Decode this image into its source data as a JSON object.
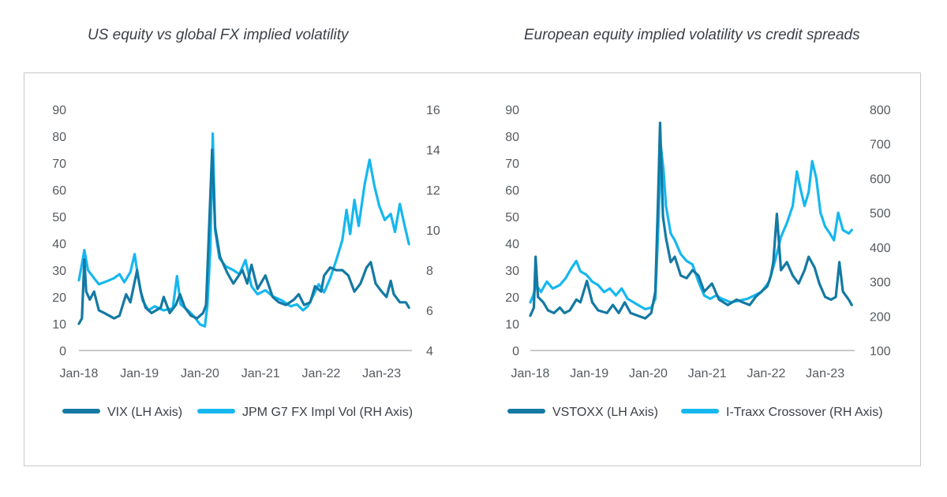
{
  "colors": {
    "dark": "#1479a3",
    "light": "#16b7ef",
    "axis": "#b5b5b5",
    "text": "#555a60"
  },
  "chart_data": [
    {
      "type": "line",
      "title": "US equity vs global FX implied volatility",
      "x_ticks": [
        "Jan-18",
        "Jan-19",
        "Jan-20",
        "Jan-21",
        "Jan-22",
        "Jan-23"
      ],
      "y_left_ticks": [
        "0",
        "10",
        "20",
        "30",
        "40",
        "50",
        "60",
        "70",
        "80",
        "90"
      ],
      "y_right_ticks": [
        "4",
        "6",
        "8",
        "10",
        "12",
        "14",
        "16"
      ],
      "ylim_left": [
        0,
        90
      ],
      "ylim_right": [
        4,
        16
      ],
      "x_range": [
        2018.0,
        2023.5
      ],
      "legend_position": "bottom",
      "series": [
        {
          "name": "VIX (LH Axis)",
          "axis": "left",
          "color": "#1479a3",
          "points": [
            [
              2018.0,
              10
            ],
            [
              2018.05,
              12
            ],
            [
              2018.09,
              34
            ],
            [
              2018.12,
              22
            ],
            [
              2018.18,
              19
            ],
            [
              2018.25,
              22
            ],
            [
              2018.33,
              15
            ],
            [
              2018.42,
              14
            ],
            [
              2018.5,
              13
            ],
            [
              2018.58,
              12
            ],
            [
              2018.67,
              13
            ],
            [
              2018.78,
              21
            ],
            [
              2018.85,
              18
            ],
            [
              2018.96,
              30
            ],
            [
              2019.02,
              22
            ],
            [
              2019.1,
              16
            ],
            [
              2019.2,
              14
            ],
            [
              2019.35,
              16
            ],
            [
              2019.4,
              20
            ],
            [
              2019.5,
              14
            ],
            [
              2019.6,
              17
            ],
            [
              2019.67,
              21
            ],
            [
              2019.75,
              16
            ],
            [
              2019.85,
              13
            ],
            [
              2019.95,
              12
            ],
            [
              2020.05,
              14
            ],
            [
              2020.1,
              17
            ],
            [
              2020.14,
              40
            ],
            [
              2020.2,
              75
            ],
            [
              2020.25,
              46
            ],
            [
              2020.33,
              35
            ],
            [
              2020.45,
              29
            ],
            [
              2020.55,
              25
            ],
            [
              2020.7,
              30
            ],
            [
              2020.78,
              25
            ],
            [
              2020.85,
              32
            ],
            [
              2020.95,
              23
            ],
            [
              2021.08,
              28
            ],
            [
              2021.2,
              20
            ],
            [
              2021.3,
              18
            ],
            [
              2021.42,
              17
            ],
            [
              2021.55,
              19
            ],
            [
              2021.63,
              21
            ],
            [
              2021.72,
              17
            ],
            [
              2021.82,
              18
            ],
            [
              2021.9,
              24
            ],
            [
              2022.0,
              22
            ],
            [
              2022.05,
              28
            ],
            [
              2022.15,
              31
            ],
            [
              2022.25,
              30
            ],
            [
              2022.35,
              30
            ],
            [
              2022.45,
              28
            ],
            [
              2022.55,
              22
            ],
            [
              2022.65,
              25
            ],
            [
              2022.75,
              31
            ],
            [
              2022.82,
              33
            ],
            [
              2022.9,
              25
            ],
            [
              2023.0,
              22
            ],
            [
              2023.08,
              20
            ],
            [
              2023.15,
              26
            ],
            [
              2023.2,
              21
            ],
            [
              2023.3,
              18
            ],
            [
              2023.4,
              18
            ],
            [
              2023.45,
              16
            ]
          ]
        },
        {
          "name": "JPM G7 FX Impl Vol (RH Axis)",
          "axis": "right",
          "color": "#16b7ef",
          "points": [
            [
              2018.0,
              7.5
            ],
            [
              2018.05,
              8.3
            ],
            [
              2018.09,
              9.0
            ],
            [
              2018.15,
              8.0
            ],
            [
              2018.25,
              7.6
            ],
            [
              2018.33,
              7.3
            ],
            [
              2018.42,
              7.4
            ],
            [
              2018.5,
              7.5
            ],
            [
              2018.58,
              7.6
            ],
            [
              2018.67,
              7.8
            ],
            [
              2018.75,
              7.4
            ],
            [
              2018.85,
              7.9
            ],
            [
              2018.92,
              8.8
            ],
            [
              2018.98,
              7.6
            ],
            [
              2019.05,
              6.5
            ],
            [
              2019.15,
              6.0
            ],
            [
              2019.25,
              6.2
            ],
            [
              2019.4,
              6.0
            ],
            [
              2019.55,
              6.1
            ],
            [
              2019.62,
              7.7
            ],
            [
              2019.68,
              6.3
            ],
            [
              2019.8,
              6.0
            ],
            [
              2019.9,
              5.7
            ],
            [
              2020.0,
              5.3
            ],
            [
              2020.08,
              5.2
            ],
            [
              2020.12,
              6.2
            ],
            [
              2020.17,
              9.0
            ],
            [
              2020.21,
              14.8
            ],
            [
              2020.25,
              10.0
            ],
            [
              2020.32,
              8.6
            ],
            [
              2020.42,
              8.2
            ],
            [
              2020.55,
              8.0
            ],
            [
              2020.65,
              7.8
            ],
            [
              2020.75,
              8.5
            ],
            [
              2020.85,
              7.2
            ],
            [
              2020.95,
              6.8
            ],
            [
              2021.08,
              7.0
            ],
            [
              2021.2,
              6.7
            ],
            [
              2021.35,
              6.5
            ],
            [
              2021.5,
              6.2
            ],
            [
              2021.6,
              6.3
            ],
            [
              2021.7,
              6.0
            ],
            [
              2021.78,
              6.2
            ],
            [
              2021.88,
              6.8
            ],
            [
              2021.96,
              7.3
            ],
            [
              2022.05,
              6.9
            ],
            [
              2022.15,
              7.6
            ],
            [
              2022.25,
              8.5
            ],
            [
              2022.35,
              9.5
            ],
            [
              2022.42,
              11.0
            ],
            [
              2022.48,
              9.8
            ],
            [
              2022.55,
              11.5
            ],
            [
              2022.62,
              10.2
            ],
            [
              2022.72,
              12.3
            ],
            [
              2022.8,
              13.5
            ],
            [
              2022.88,
              12.2
            ],
            [
              2022.96,
              11.2
            ],
            [
              2023.05,
              10.5
            ],
            [
              2023.15,
              10.8
            ],
            [
              2023.22,
              9.9
            ],
            [
              2023.3,
              11.3
            ],
            [
              2023.38,
              10.2
            ],
            [
              2023.45,
              9.3
            ]
          ]
        }
      ]
    },
    {
      "type": "line",
      "title": "European equity implied volatility vs credit spreads",
      "x_ticks": [
        "Jan-18",
        "Jan-19",
        "Jan-20",
        "Jan-21",
        "Jan-22",
        "Jan-23"
      ],
      "y_left_ticks": [
        "0",
        "10",
        "20",
        "30",
        "40",
        "50",
        "60",
        "70",
        "80",
        "90"
      ],
      "y_right_ticks": [
        "100",
        "200",
        "300",
        "400",
        "500",
        "600",
        "700",
        "800"
      ],
      "ylim_left": [
        0,
        90
      ],
      "ylim_right": [
        100,
        800
      ],
      "x_range": [
        2018.0,
        2023.5
      ],
      "legend_position": "bottom",
      "series": [
        {
          "name": "VSTOXX (LH Axis)",
          "axis": "left",
          "color": "#1479a3",
          "points": [
            [
              2018.0,
              13
            ],
            [
              2018.06,
              16
            ],
            [
              2018.09,
              35
            ],
            [
              2018.13,
              20
            ],
            [
              2018.22,
              18
            ],
            [
              2018.3,
              15
            ],
            [
              2018.4,
              14
            ],
            [
              2018.5,
              16
            ],
            [
              2018.58,
              14
            ],
            [
              2018.67,
              15
            ],
            [
              2018.78,
              19
            ],
            [
              2018.85,
              18
            ],
            [
              2018.96,
              26
            ],
            [
              2019.05,
              18
            ],
            [
              2019.15,
              15
            ],
            [
              2019.3,
              14
            ],
            [
              2019.4,
              17
            ],
            [
              2019.5,
              14
            ],
            [
              2019.6,
              18
            ],
            [
              2019.7,
              14
            ],
            [
              2019.82,
              13
            ],
            [
              2019.95,
              12
            ],
            [
              2020.05,
              14
            ],
            [
              2020.12,
              22
            ],
            [
              2020.17,
              60
            ],
            [
              2020.2,
              85
            ],
            [
              2020.25,
              50
            ],
            [
              2020.3,
              42
            ],
            [
              2020.38,
              33
            ],
            [
              2020.45,
              35
            ],
            [
              2020.55,
              28
            ],
            [
              2020.65,
              27
            ],
            [
              2020.75,
              30
            ],
            [
              2020.85,
              28
            ],
            [
              2020.95,
              22
            ],
            [
              2021.08,
              25
            ],
            [
              2021.2,
              19
            ],
            [
              2021.35,
              17
            ],
            [
              2021.5,
              19
            ],
            [
              2021.6,
              18
            ],
            [
              2021.72,
              17
            ],
            [
              2021.82,
              20
            ],
            [
              2021.92,
              22
            ],
            [
              2022.02,
              24
            ],
            [
              2022.08,
              28
            ],
            [
              2022.12,
              33
            ],
            [
              2022.18,
              51
            ],
            [
              2022.25,
              30
            ],
            [
              2022.35,
              33
            ],
            [
              2022.45,
              28
            ],
            [
              2022.55,
              25
            ],
            [
              2022.65,
              30
            ],
            [
              2022.72,
              35
            ],
            [
              2022.82,
              31
            ],
            [
              2022.9,
              25
            ],
            [
              2023.0,
              20
            ],
            [
              2023.1,
              19
            ],
            [
              2023.18,
              20
            ],
            [
              2023.24,
              33
            ],
            [
              2023.3,
              22
            ],
            [
              2023.4,
              19
            ],
            [
              2023.45,
              17
            ]
          ]
        },
        {
          "name": "I-Traxx Crossover (RH Axis)",
          "axis": "right",
          "color": "#16b7ef",
          "points": [
            [
              2018.0,
              240
            ],
            [
              2018.05,
              260
            ],
            [
              2018.1,
              290
            ],
            [
              2018.18,
              270
            ],
            [
              2018.28,
              300
            ],
            [
              2018.38,
              280
            ],
            [
              2018.5,
              290
            ],
            [
              2018.6,
              310
            ],
            [
              2018.7,
              340
            ],
            [
              2018.78,
              360
            ],
            [
              2018.85,
              330
            ],
            [
              2018.95,
              320
            ],
            [
              2019.05,
              300
            ],
            [
              2019.15,
              290
            ],
            [
              2019.25,
              270
            ],
            [
              2019.35,
              280
            ],
            [
              2019.45,
              260
            ],
            [
              2019.55,
              280
            ],
            [
              2019.65,
              250
            ],
            [
              2019.75,
              240
            ],
            [
              2019.85,
              230
            ],
            [
              2019.95,
              220
            ],
            [
              2020.05,
              225
            ],
            [
              2020.12,
              250
            ],
            [
              2020.18,
              500
            ],
            [
              2020.21,
              700
            ],
            [
              2020.26,
              620
            ],
            [
              2020.3,
              520
            ],
            [
              2020.38,
              440
            ],
            [
              2020.45,
              420
            ],
            [
              2020.55,
              380
            ],
            [
              2020.65,
              360
            ],
            [
              2020.75,
              350
            ],
            [
              2020.85,
              300
            ],
            [
              2020.95,
              260
            ],
            [
              2021.05,
              250
            ],
            [
              2021.15,
              260
            ],
            [
              2021.25,
              250
            ],
            [
              2021.4,
              240
            ],
            [
              2021.55,
              245
            ],
            [
              2021.68,
              250
            ],
            [
              2021.8,
              260
            ],
            [
              2021.92,
              270
            ],
            [
              2022.05,
              300
            ],
            [
              2022.15,
              360
            ],
            [
              2022.25,
              430
            ],
            [
              2022.35,
              470
            ],
            [
              2022.45,
              520
            ],
            [
              2022.52,
              620
            ],
            [
              2022.58,
              570
            ],
            [
              2022.65,
              520
            ],
            [
              2022.72,
              560
            ],
            [
              2022.78,
              650
            ],
            [
              2022.85,
              600
            ],
            [
              2022.92,
              500
            ],
            [
              2023.0,
              460
            ],
            [
              2023.08,
              440
            ],
            [
              2023.15,
              420
            ],
            [
              2023.22,
              500
            ],
            [
              2023.3,
              450
            ],
            [
              2023.4,
              440
            ],
            [
              2023.45,
              450
            ]
          ]
        }
      ]
    }
  ]
}
